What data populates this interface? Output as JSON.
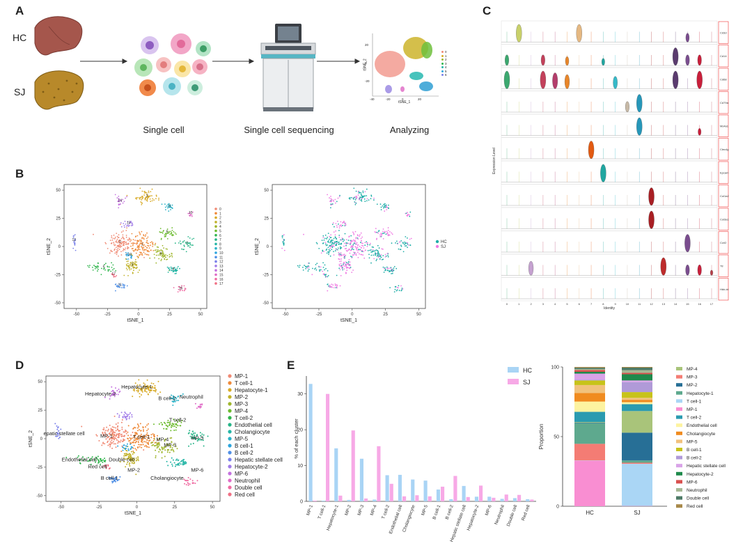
{
  "panels": {
    "A": {
      "letter": "A",
      "hc_label": "HC",
      "sj_label": "SJ",
      "step1": "Single cell",
      "step2": "Single cell sequencing",
      "step3": "Analyzing",
      "mini_legend": [
        "0",
        "1",
        "2",
        "3",
        "4",
        "5",
        "6"
      ],
      "mini_xticks": [
        "-40",
        "-20",
        "0",
        "20"
      ],
      "mini_yticks": [
        "20",
        "0",
        "-20"
      ],
      "mini_xlabel": "tSNE_1",
      "mini_ylabel": "tSNE_2"
    },
    "B": {
      "letter": "B",
      "xlabel": "tSNE_1",
      "ylabel": "tSNE_2",
      "xticks": [
        "-50",
        "-25",
        "0",
        "25",
        "50"
      ],
      "yticks": [
        "50",
        "25",
        "0",
        "-25",
        "-50"
      ],
      "cluster_legend": [
        "0",
        "1",
        "2",
        "3",
        "4",
        "5",
        "6",
        "7",
        "8",
        "9",
        "10",
        "11",
        "12",
        "13",
        "14",
        "15",
        "16",
        "17"
      ],
      "cluster_labels": [
        "0",
        "1",
        "2",
        "3",
        "4",
        "5",
        "6",
        "7",
        "8",
        "9",
        "10",
        "11",
        "12",
        "13",
        "14",
        "15",
        "16",
        "17"
      ],
      "group_legend": [
        "HC",
        "SJ"
      ]
    },
    "C": {
      "letter": "C",
      "genes": [
        "Cd3d",
        "Cd14",
        "Cd68",
        "Cd79a",
        "Ms4a1",
        "Clec4g",
        "Epcam",
        "Col1a2",
        "Col3a1",
        "Ccrl2",
        "Ttr",
        "Hbb-bt"
      ],
      "xlabel": "Identity",
      "ylabel": "Expression Level",
      "xticks": [
        "0",
        "1",
        "2",
        "3",
        "4",
        "5",
        "6",
        "7",
        "8",
        "9",
        "10",
        "11",
        "12",
        "13",
        "14",
        "15",
        "16",
        "17"
      ]
    },
    "D": {
      "letter": "D",
      "xlabel": "tSNE_1",
      "ylabel": "tSNE_2",
      "xticks": [
        "-50",
        "-25",
        "0",
        "25",
        "50"
      ],
      "yticks": [
        "50",
        "25",
        "0",
        "-25",
        "-50"
      ],
      "legend": [
        "MP-1",
        "T cell-1",
        "Hepatocyte-1",
        "MP-2",
        "MP-3",
        "MP-4",
        "T cell-2",
        "Endothelial cell",
        "Cholangiocyte",
        "MP-5",
        "B cell-1",
        "B cell-2",
        "Hepatic stellate cell",
        "Hepatocyte-2",
        "MP-6",
        "Neutrophil",
        "Double cell",
        "Red cell"
      ],
      "plot_labels": [
        "Hepatocyte-2",
        "Hepatocyte-1",
        "B cell-2",
        "Neutrophil",
        "T cell-2",
        "epatic stellate cell",
        "MP-1",
        "T cell-1",
        "MP-5",
        "MP-3",
        "Endothelial cell",
        "Double cell",
        "Red cell",
        "MP-4",
        "B cell-1",
        "MP-2",
        "Cholangiocyte",
        "MP-6"
      ]
    },
    "E": {
      "letter": "E",
      "legend": [
        "HC",
        "SJ"
      ],
      "right_legend": [
        "MP-4",
        "MP-3",
        "MP-2",
        "Hepatocyte-1",
        "T cell-1",
        "MP-1",
        "T cell-2",
        "Endothelial cell",
        "Cholangiocyte",
        "MP-5",
        "B cell-1",
        "B cell-2",
        "Hepatic stellate cell",
        "Hepatocyte-2",
        "MP-6",
        "Neutrophil",
        "Double cell",
        "Red cell"
      ],
      "right_ylabel": "Proportion",
      "right_xticks": [
        "HC",
        "SJ"
      ],
      "right_yticks": [
        "100",
        "50",
        "0"
      ]
    }
  },
  "chart_data": [
    {
      "type": "bar",
      "title": "",
      "xlabel": "",
      "ylabel": "% of each cluster",
      "ylim": [
        0,
        35
      ],
      "yticks": [
        "0",
        "10",
        "20",
        "30"
      ],
      "categories": [
        "MP-1",
        "T cell-1",
        "Hepatocyte-1",
        "MP-2",
        "MP-3",
        "MP-4",
        "T cell-2",
        "Endothelial cell",
        "Cholangiocyte",
        "MP-5",
        "B cell-1",
        "B cell-2",
        "Hepatic stellate cell",
        "Hepatocyte-2",
        "MP-6",
        "Neutrophil",
        "Double cell",
        "Red cell"
      ],
      "series": [
        {
          "name": "HC",
          "color": "#a9d4f5",
          "values": [
            32.8,
            0.2,
            14.8,
            0.4,
            11.9,
            0.5,
            7.3,
            7.4,
            6.1,
            5.8,
            3.3,
            0.6,
            4.3,
            1.3,
            1.3,
            0.7,
            0.9,
            0.6
          ]
        },
        {
          "name": "SJ",
          "color": "#f7a9e6",
          "values": [
            0.2,
            30.0,
            1.6,
            19.8,
            0.8,
            15.4,
            4.9,
            1.4,
            1.7,
            1.4,
            4.1,
            7.1,
            1.2,
            4.4,
            1.0,
            1.9,
            1.8,
            0.5
          ]
        }
      ]
    },
    {
      "type": "bar",
      "stacked": true,
      "ylabel": "Proportion",
      "ylim": [
        0,
        100
      ],
      "categories": [
        "HC",
        "SJ"
      ],
      "series": [
        {
          "name": "MP-1",
          "color": "#f98ed2",
          "values": [
            32.8,
            0.2
          ]
        },
        {
          "name": "T cell-1",
          "color": "#aad6f5",
          "values": [
            0.2,
            30.0
          ]
        },
        {
          "name": "MP-3",
          "color": "#f47c74",
          "values": [
            11.9,
            0.8
          ]
        },
        {
          "name": "Hepatocyte-1",
          "color": "#5ea98e",
          "values": [
            14.8,
            1.6
          ]
        },
        {
          "name": "MP-2",
          "color": "#276f96",
          "values": [
            0.4,
            19.8
          ]
        },
        {
          "name": "MP-4",
          "color": "#a9c47a",
          "values": [
            0.5,
            15.4
          ]
        },
        {
          "name": "T cell-2",
          "color": "#2a9bb0",
          "values": [
            7.3,
            4.9
          ]
        },
        {
          "name": "Endothelial cell",
          "color": "#fdf3a0",
          "values": [
            7.4,
            1.4
          ]
        },
        {
          "name": "Cholangiocyte",
          "color": "#f08b1f",
          "values": [
            6.1,
            1.7
          ]
        },
        {
          "name": "MP-5",
          "color": "#f1c27d",
          "values": [
            5.8,
            1.4
          ]
        },
        {
          "name": "B cell-1",
          "color": "#c7c31a",
          "values": [
            3.3,
            4.1
          ]
        },
        {
          "name": "B cell-2",
          "color": "#b09ad8",
          "values": [
            0.6,
            7.1
          ]
        },
        {
          "name": "Hepatic stellate cell",
          "color": "#d9a3e8",
          "values": [
            4.3,
            1.2
          ]
        },
        {
          "name": "Hepatocyte-2",
          "color": "#1f8a4c",
          "values": [
            1.3,
            4.4
          ]
        },
        {
          "name": "MP-6",
          "color": "#d9504e",
          "values": [
            1.3,
            1.0
          ]
        },
        {
          "name": "Neutrophil",
          "color": "#a6b895",
          "values": [
            0.7,
            1.9
          ]
        },
        {
          "name": "Double cell",
          "color": "#4d7a66",
          "values": [
            0.9,
            1.8
          ]
        },
        {
          "name": "Red cell",
          "color": "#a8894a",
          "values": [
            0.6,
            0.5
          ]
        }
      ]
    }
  ],
  "colors": {
    "hc": "#1fada8",
    "sj": "#ef7be3",
    "cluster": [
      "#f08a74",
      "#ef8a3a",
      "#d8ab29",
      "#c1b22a",
      "#9fb62d",
      "#6cbb2e",
      "#2fb54c",
      "#25b487",
      "#24b5a5",
      "#2bb2c7",
      "#2ca4dd",
      "#4f8fe6",
      "#7b82ea",
      "#a07ae8",
      "#c471df",
      "#e06bc7",
      "#ef6aa1",
      "#f06f84"
    ],
    "legend_d": [
      "#f08a74",
      "#ef8a3a",
      "#d8ab29",
      "#c1b22a",
      "#9fb62d",
      "#6cbb2e",
      "#2fb54c",
      "#25b487",
      "#24b5a5",
      "#2bb2c7",
      "#2ca4dd",
      "#4f8fe6",
      "#7b82ea",
      "#a07ae8",
      "#c471df",
      "#e06bc7",
      "#ef6aa1",
      "#f06f84"
    ],
    "right_legend": [
      "#a9c47a",
      "#f47c74",
      "#276f96",
      "#5ea98e",
      "#aad6f5",
      "#f98ed2",
      "#2a9bb0",
      "#fdf3a0",
      "#f08b1f",
      "#f1c27d",
      "#c7c31a",
      "#b09ad8",
      "#d9a3e8",
      "#1f8a4c",
      "#d9504e",
      "#a6b895",
      "#4d7a66",
      "#a8894a"
    ]
  }
}
